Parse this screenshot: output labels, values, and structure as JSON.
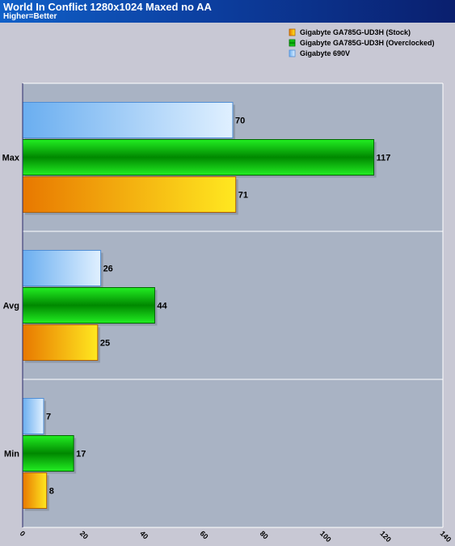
{
  "chart_data": {
    "type": "bar",
    "orientation": "horizontal",
    "title": "World In Conflict 1280x1024 Maxed no AA",
    "subtitle": "Higher=Better",
    "categories": [
      "Max",
      "Avg",
      "Min"
    ],
    "series": [
      {
        "name": "Gigabyte 690V",
        "values": [
          70,
          26,
          7
        ],
        "color_light": "#e0f0ff",
        "color_dark": "#6aaef0",
        "border": "#4f8ed6"
      },
      {
        "name": "Gigabyte GA785G-UD3H (Overclocked)",
        "values": [
          117,
          44,
          17
        ],
        "color_light": "#22ee22",
        "color_dark": "#008800",
        "border": "#006600"
      },
      {
        "name": "Gigabyte GA785G-UD3H (Stock)",
        "values": [
          71,
          25,
          8
        ],
        "color_light": "#ffe820",
        "color_dark": "#e87800",
        "border": "#b06000"
      }
    ],
    "legend_order": [
      "Gigabyte GA785G-UD3H (Stock)",
      "Gigabyte GA785G-UD3H (Overclocked)",
      "Gigabyte 690V"
    ],
    "xlim": [
      0,
      140
    ],
    "xticks": [
      "0",
      "20",
      "40",
      "60",
      "80",
      "100",
      "120",
      "140"
    ],
    "legend_position": "top-right",
    "colors": {
      "band_dark": "#a9b3c4",
      "band_light": "#c8c8d4",
      "header": "#0c3fa0"
    }
  }
}
